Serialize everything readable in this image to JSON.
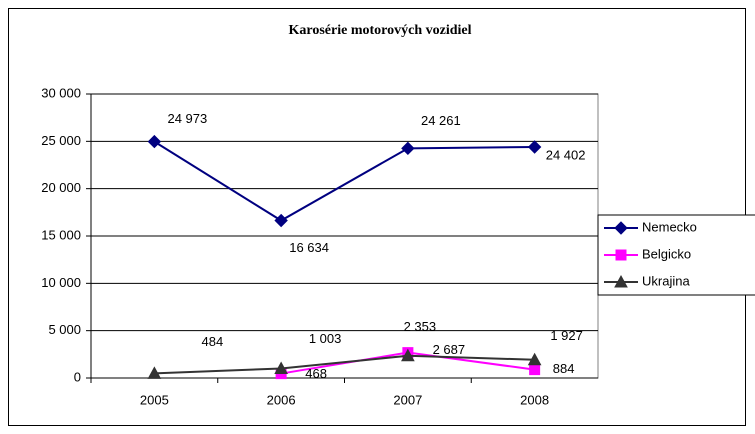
{
  "chart_data": {
    "type": "line",
    "title": "Karosérie motorových vozidiel",
    "categories": [
      "2005",
      "2006",
      "2007",
      "2008"
    ],
    "series": [
      {
        "name": "Nemecko",
        "color": "#000080",
        "marker": "diamond",
        "values": [
          24973,
          16634,
          24261,
          24402
        ],
        "value_labels": [
          "24 973",
          "16 634",
          "24 261",
          "24 402"
        ]
      },
      {
        "name": "Belgicko",
        "color": "#ff00ff",
        "marker": "square",
        "values": [
          null,
          468,
          2687,
          884
        ],
        "value_labels": [
          null,
          "468",
          "2 687",
          "884"
        ]
      },
      {
        "name": "Ukrajina",
        "color": "#333333",
        "marker": "triangle",
        "values": [
          484,
          1003,
          2353,
          1927
        ],
        "value_labels": [
          "484",
          "1 003",
          "2 353",
          "1 927"
        ]
      }
    ],
    "ylim": [
      0,
      30000
    ],
    "yticks": [
      0,
      {
        "value": 5000,
        "label": "5 000"
      },
      {
        "value": 10000,
        "label": "10 000"
      },
      {
        "value": 15000,
        "label": "15 000"
      },
      {
        "value": 20000,
        "label": "20 000"
      },
      {
        "value": 25000,
        "label": "25 000"
      },
      {
        "value": 30000,
        "label": "30 000"
      }
    ],
    "grid": true,
    "legend": "right"
  }
}
